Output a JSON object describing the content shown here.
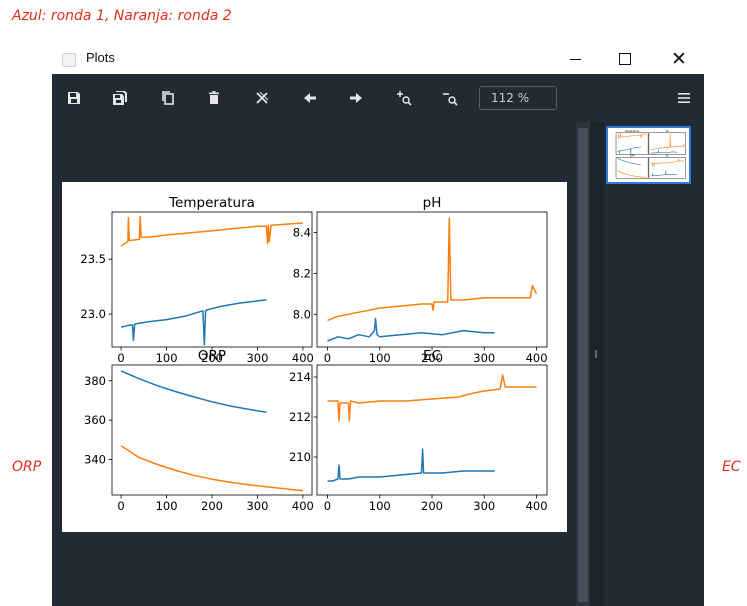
{
  "captions": {
    "top": "Azul: ronda 1, Naranja: ronda 2",
    "orp_side": "ORP",
    "ec_side": "EC"
  },
  "window": {
    "title": "Plots",
    "buttons": {
      "minimize": "minimize-icon",
      "maximize": "maximize-icon",
      "close": "close-icon"
    }
  },
  "toolbar": {
    "tools": [
      "save-icon",
      "save-all-icon",
      "copy-icon",
      "delete-icon",
      "close-all-icon",
      "previous-arrow-icon",
      "next-arrow-icon",
      "zoom-in-icon",
      "zoom-out-icon"
    ],
    "zoom_value": "112 %",
    "menu": "hamburger-menu-icon"
  },
  "colors": {
    "series_1": "#1f77b4",
    "series_2": "#ff7f0e",
    "selection": "#2e7bd6"
  },
  "chart_data": [
    {
      "type": "line",
      "title": "Temperatura",
      "xlim": [
        -20,
        420
      ],
      "ylim": [
        22.7,
        23.93
      ],
      "xticks": [
        0,
        100,
        200,
        300,
        400
      ],
      "yticks": [
        23.0,
        23.5
      ],
      "ytick_labels": [
        "23.0",
        "23.5"
      ],
      "series": [
        {
          "color": "#1f77b4",
          "x": [
            0,
            20,
            25,
            27,
            30,
            60,
            100,
            140,
            180,
            183,
            186,
            190,
            220,
            260,
            300,
            320
          ],
          "y": [
            22.88,
            22.9,
            22.9,
            22.76,
            22.91,
            22.93,
            22.95,
            22.98,
            23.03,
            22.72,
            23.03,
            23.04,
            23.07,
            23.1,
            23.12,
            23.13
          ]
        },
        {
          "color": "#ff7f0e",
          "x": [
            0,
            15,
            16,
            18,
            40,
            42,
            44,
            60,
            100,
            150,
            200,
            250,
            300,
            320,
            322,
            324,
            326,
            330,
            400
          ],
          "y": [
            23.62,
            23.66,
            23.88,
            23.67,
            23.68,
            23.89,
            23.7,
            23.7,
            23.72,
            23.74,
            23.76,
            23.78,
            23.8,
            23.8,
            23.64,
            23.81,
            23.66,
            23.81,
            23.83
          ]
        }
      ]
    },
    {
      "type": "line",
      "title": "pH",
      "xlim": [
        -20,
        420
      ],
      "ylim": [
        7.84,
        8.5
      ],
      "xticks": [
        0,
        100,
        200,
        300,
        400
      ],
      "yticks": [
        8.0,
        8.2,
        8.4
      ],
      "ytick_labels": [
        "8.0",
        "8.2",
        "8.4"
      ],
      "series": [
        {
          "color": "#1f77b4",
          "x": [
            0,
            20,
            40,
            60,
            80,
            90,
            92,
            95,
            100,
            140,
            180,
            220,
            260,
            300,
            320
          ],
          "y": [
            7.87,
            7.89,
            7.88,
            7.9,
            7.89,
            7.92,
            7.98,
            7.9,
            7.89,
            7.9,
            7.91,
            7.9,
            7.92,
            7.91,
            7.91
          ]
        },
        {
          "color": "#ff7f0e",
          "x": [
            0,
            20,
            40,
            60,
            80,
            100,
            140,
            180,
            200,
            202,
            204,
            220,
            230,
            233,
            236,
            260,
            300,
            340,
            380,
            388,
            392,
            400
          ],
          "y": [
            7.97,
            7.99,
            8.0,
            8.01,
            8.02,
            8.03,
            8.04,
            8.05,
            8.05,
            8.02,
            8.06,
            8.06,
            8.06,
            8.47,
            8.07,
            8.07,
            8.08,
            8.08,
            8.08,
            8.08,
            8.14,
            8.1
          ]
        }
      ]
    },
    {
      "type": "line",
      "title": "ORP",
      "xlim": [
        -20,
        420
      ],
      "ylim": [
        322,
        388
      ],
      "xticks": [
        0,
        100,
        200,
        300,
        400
      ],
      "yticks": [
        340,
        360,
        380
      ],
      "ytick_labels": [
        "340",
        "360",
        "380"
      ],
      "series": [
        {
          "color": "#1f77b4",
          "x": [
            0,
            40,
            80,
            120,
            160,
            200,
            240,
            280,
            320
          ],
          "y": [
            385,
            381,
            377.5,
            374.5,
            371.8,
            369.3,
            367.2,
            365.5,
            364
          ]
        },
        {
          "color": "#ff7f0e",
          "x": [
            0,
            40,
            80,
            120,
            160,
            200,
            240,
            280,
            320,
            360,
            400
          ],
          "y": [
            347,
            341,
            337.5,
            334.5,
            332,
            330,
            328.5,
            327.2,
            326.2,
            325.2,
            324.2
          ]
        }
      ]
    },
    {
      "type": "line",
      "title": "EC",
      "xlim": [
        -20,
        420
      ],
      "ylim": [
        208.1,
        214.6
      ],
      "xticks": [
        0,
        100,
        200,
        300,
        400
      ],
      "yticks": [
        210,
        212,
        214
      ],
      "ytick_labels": [
        "210",
        "212",
        "214"
      ],
      "series": [
        {
          "color": "#1f77b4",
          "x": [
            0,
            10,
            20,
            22,
            24,
            40,
            60,
            80,
            100,
            140,
            180,
            182,
            184,
            220,
            260,
            300,
            320
          ],
          "y": [
            208.8,
            208.8,
            208.9,
            209.6,
            208.9,
            208.9,
            209.0,
            209.0,
            209.0,
            209.1,
            209.2,
            210.4,
            209.2,
            209.2,
            209.3,
            209.3,
            209.3
          ]
        },
        {
          "color": "#ff7f0e",
          "x": [
            0,
            20,
            22,
            24,
            40,
            42,
            44,
            60,
            100,
            150,
            200,
            250,
            280,
            300,
            330,
            335,
            340,
            360,
            400
          ],
          "y": [
            212.8,
            212.8,
            211.8,
            212.7,
            212.7,
            211.8,
            212.8,
            212.7,
            212.8,
            212.8,
            212.9,
            213.0,
            213.2,
            213.3,
            213.4,
            214.1,
            213.5,
            213.5,
            213.5
          ]
        }
      ]
    }
  ]
}
